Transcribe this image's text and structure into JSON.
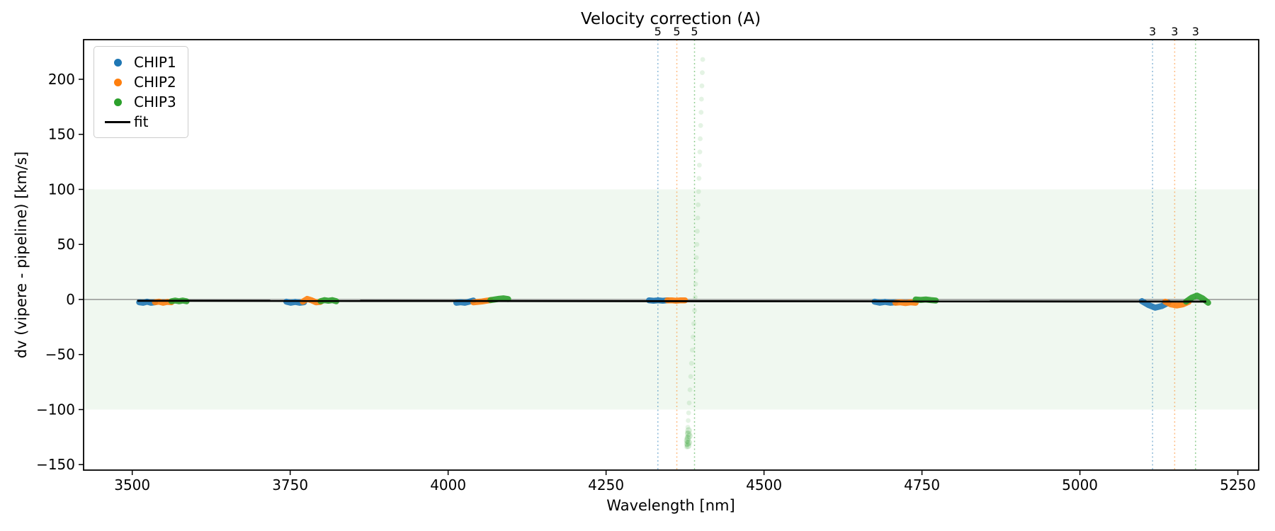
{
  "chart_data": {
    "type": "scatter",
    "title": "Velocity correction (A)",
    "xlabel": "Wavelength [nm]",
    "ylabel": "dv (vipere - pipeline) [km/s]",
    "xlim": [
      3423,
      5283
    ],
    "ylim": [
      -155,
      236
    ],
    "xticks": [
      3500,
      3750,
      4000,
      4250,
      4500,
      4750,
      5000,
      5250
    ],
    "xtick_labels": [
      "3500",
      "3750",
      "4000",
      "4250",
      "4500",
      "4750",
      "5000",
      "5250"
    ],
    "yticks": [
      -150,
      -100,
      -50,
      0,
      50,
      100,
      150,
      200
    ],
    "ytick_labels": [
      "−150",
      "−100",
      "−50",
      "0",
      "50",
      "100",
      "150",
      "200"
    ],
    "grid": "off",
    "legend_position": "upper left",
    "legend": [
      {
        "label": "CHIP1",
        "color": "#1f77b4",
        "marker": "dot"
      },
      {
        "label": "CHIP2",
        "color": "#ff7f0e",
        "marker": "dot"
      },
      {
        "label": "CHIP3",
        "color": "#2ca02c",
        "marker": "dot"
      },
      {
        "label": "fit",
        "color": "#000000",
        "marker": "line"
      }
    ],
    "shaded_band": {
      "dv_min": -100,
      "dv_max": 100,
      "color": "rgba(44,160,44,0.07)"
    },
    "zero_line": {
      "dv": 0,
      "color": "#808080"
    },
    "fit_line": {
      "label": "fit",
      "color": "#000000",
      "lam": [
        3508,
        5200
      ],
      "dv": [
        -1.2,
        -1.9
      ]
    },
    "vlines": [
      {
        "lam": 4332,
        "label": "5",
        "color": "#1f77b4"
      },
      {
        "lam": 4362,
        "label": "5",
        "color": "#ff7f0e"
      },
      {
        "lam": 4390,
        "label": "5",
        "color": "#2ca02c"
      },
      {
        "lam": 5115,
        "label": "3",
        "color": "#1f77b4"
      },
      {
        "lam": 5150,
        "label": "3",
        "color": "#ff7f0e"
      },
      {
        "lam": 5183,
        "label": "3",
        "color": "#2ca02c"
      }
    ],
    "series": [
      {
        "name": "CHIP1",
        "color": "#1f77b4",
        "clusters": [
          {
            "lam": [
              3511,
              3536
            ],
            "dv": [
              -2.5,
              -3,
              -2,
              -3,
              -2.5
            ]
          },
          {
            "lam": [
              3744,
              3772
            ],
            "dv": [
              -2,
              -3,
              -2.2,
              -3,
              -2.5
            ]
          },
          {
            "lam": [
              4013,
              4040
            ],
            "dv": [
              -3,
              -2.5,
              -3,
              -2,
              -1
            ]
          },
          {
            "lam": [
              4318,
              4347
            ],
            "dv": [
              -0.8,
              -1.2,
              -0.8,
              -1.2,
              -0.8
            ]
          },
          {
            "lam": [
              4675,
              4708
            ],
            "dv": [
              -2,
              -3,
              -2.2,
              -3,
              -2.5
            ]
          },
          {
            "lam": [
              5098,
              5140
            ],
            "dv": [
              -1.5,
              -5,
              -7.5,
              -6,
              -3
            ]
          }
        ]
      },
      {
        "name": "CHIP2",
        "color": "#ff7f0e",
        "clusters": [
          {
            "lam": [
              3536,
              3562
            ],
            "dv": [
              -2.5,
              -2,
              -3,
              -2.2,
              -2.5
            ]
          },
          {
            "lam": [
              3770,
              3798
            ],
            "dv": [
              -2,
              0.5,
              -0.8,
              -2.6,
              -2.2
            ]
          },
          {
            "lam": [
              4040,
              4067
            ],
            "dv": [
              -2.6,
              -2.2,
              -1.8,
              -1.2,
              -0.6
            ]
          },
          {
            "lam": [
              4347,
              4375
            ],
            "dv": [
              -0.8,
              -0.8,
              -1.2,
              -0.8,
              -0.8
            ]
          },
          {
            "lam": [
              4708,
              4740
            ],
            "dv": [
              -3,
              -2.6,
              -3.2,
              -2.6,
              -3
            ]
          },
          {
            "lam": [
              5135,
              5172
            ],
            "dv": [
              -2,
              -4.5,
              -5.5,
              -4.5,
              -2.2
            ]
          }
        ]
      },
      {
        "name": "CHIP3",
        "color": "#2ca02c",
        "clusters": [
          {
            "lam": [
              3562,
              3586
            ],
            "dv": [
              -1.6,
              -1,
              -1.6,
              -1,
              -1.6
            ]
          },
          {
            "lam": [
              3798,
              3823
            ],
            "dv": [
              -1.6,
              -0.6,
              -1.2,
              -0.6,
              -1.6
            ]
          },
          {
            "lam": [
              4067,
              4095
            ],
            "dv": [
              -0.6,
              0,
              0.6,
              1,
              0.4
            ]
          },
          {
            "lam": [
              4740,
              4772
            ],
            "dv": [
              0,
              -0.4,
              0,
              -0.6,
              -1
            ]
          },
          {
            "lam": [
              5168,
              5203
            ],
            "dv": [
              -2,
              1.5,
              3.5,
              1,
              -3
            ]
          }
        ],
        "outlier_stream": [
          [
            4403.0,
            218
          ],
          [
            4402.3,
            206
          ],
          [
            4401.7,
            194
          ],
          [
            4401.0,
            182
          ],
          [
            4400.4,
            170
          ],
          [
            4399.7,
            158
          ],
          [
            4399.0,
            146
          ],
          [
            4398.4,
            134
          ],
          [
            4397.7,
            122
          ],
          [
            4397.1,
            110
          ],
          [
            4396.4,
            98
          ],
          [
            4395.7,
            86
          ],
          [
            4395.1,
            74
          ],
          [
            4394.4,
            62
          ],
          [
            4393.8,
            50
          ],
          [
            4393.1,
            38
          ],
          [
            4392.4,
            26
          ],
          [
            4391.8,
            14
          ],
          [
            4391.1,
            2
          ],
          [
            4390.0,
            -10
          ],
          [
            4388.8,
            -22
          ],
          [
            4387.6,
            -34
          ],
          [
            4386.4,
            -46
          ],
          [
            4385.2,
            -58
          ],
          [
            4384.0,
            -70
          ],
          [
            4382.8,
            -82
          ],
          [
            4381.6,
            -94
          ],
          [
            4380.7,
            -103
          ],
          [
            4380.0,
            -110
          ],
          [
            4379.4,
            -116
          ],
          [
            4378.9,
            -121
          ],
          [
            4378.5,
            -125
          ],
          [
            4378.1,
            -129
          ],
          [
            4377.8,
            -132
          ],
          [
            4377.6,
            -134
          ]
        ],
        "outlier_clump": [
          [
            4379.5,
            -126
          ],
          [
            4381.0,
            -130
          ],
          [
            4380.2,
            -122
          ],
          [
            4378.4,
            -128
          ],
          [
            4381.8,
            -124
          ],
          [
            4379.8,
            -133
          ],
          [
            4380.6,
            -119
          ],
          [
            4379.0,
            -131
          ]
        ]
      }
    ]
  }
}
